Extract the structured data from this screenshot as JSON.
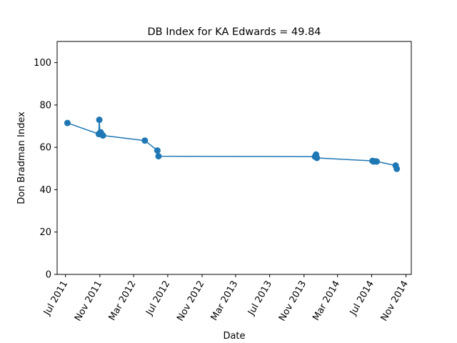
{
  "chart_data": {
    "type": "line",
    "title": "DB Index for KA Edwards = 49.84",
    "xlabel": "Date",
    "ylabel": "Don Bradman Index",
    "x_axis_type": "date",
    "xlim": [
      "2011-06-01",
      "2014-11-20"
    ],
    "ylim": [
      0,
      110
    ],
    "y_ticks": [
      0,
      20,
      40,
      60,
      80,
      100
    ],
    "x_ticks": [
      {
        "date": "2011-07-01",
        "label": "Jul 2011"
      },
      {
        "date": "2011-11-01",
        "label": "Nov 2011"
      },
      {
        "date": "2012-03-01",
        "label": "Mar 2012"
      },
      {
        "date": "2012-07-01",
        "label": "Jul 2012"
      },
      {
        "date": "2012-11-01",
        "label": "Nov 2012"
      },
      {
        "date": "2013-03-01",
        "label": "Mar 2013"
      },
      {
        "date": "2013-07-01",
        "label": "Jul 2013"
      },
      {
        "date": "2013-11-01",
        "label": "Nov 2013"
      },
      {
        "date": "2014-03-01",
        "label": "Mar 2014"
      },
      {
        "date": "2014-07-01",
        "label": "Jul 2014"
      },
      {
        "date": "2014-11-01",
        "label": "Nov 2014"
      }
    ],
    "grid": false,
    "legend": "none",
    "series": [
      {
        "color": "#1f77b4",
        "marker": "circle",
        "points": [
          {
            "x": "2011-07-08",
            "y": 71.5
          },
          {
            "x": "2011-10-28",
            "y": 66.3
          },
          {
            "x": "2011-10-30",
            "y": 73.0
          },
          {
            "x": "2011-11-01",
            "y": 66.7
          },
          {
            "x": "2011-11-04",
            "y": 67.1
          },
          {
            "x": "2011-11-08",
            "y": 66.0
          },
          {
            "x": "2011-11-12",
            "y": 65.6
          },
          {
            "x": "2012-04-10",
            "y": 63.2
          },
          {
            "x": "2012-05-25",
            "y": 58.5
          },
          {
            "x": "2012-05-29",
            "y": 55.8
          },
          {
            "x": "2013-12-10",
            "y": 55.6
          },
          {
            "x": "2013-12-14",
            "y": 56.6
          },
          {
            "x": "2013-12-17",
            "y": 55.0
          },
          {
            "x": "2014-07-04",
            "y": 53.6
          },
          {
            "x": "2014-07-08",
            "y": 53.3
          },
          {
            "x": "2014-07-12",
            "y": 53.4
          },
          {
            "x": "2014-07-19",
            "y": 53.3
          },
          {
            "x": "2014-09-25",
            "y": 51.4
          },
          {
            "x": "2014-09-29",
            "y": 49.84
          }
        ]
      }
    ]
  }
}
